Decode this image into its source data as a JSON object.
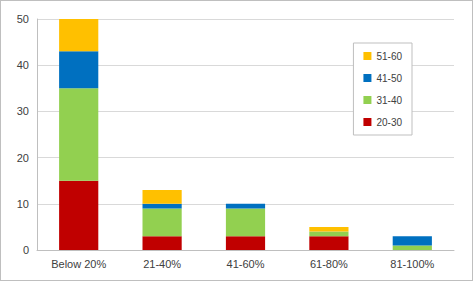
{
  "chart_data": {
    "type": "bar",
    "stacked": true,
    "grid": true,
    "legend": "right",
    "categories": [
      "Below 20%",
      "21-40%",
      "41-60%",
      "61-80%",
      "81-100%"
    ],
    "series": [
      {
        "name": "20-30",
        "color": "#c00000",
        "values": [
          15,
          3,
          3,
          3,
          0
        ]
      },
      {
        "name": "31-40",
        "color": "#92d050",
        "values": [
          20,
          6,
          6,
          1,
          1
        ]
      },
      {
        "name": "41-50",
        "color": "#0070c0",
        "values": [
          8,
          1,
          1,
          0,
          2
        ]
      },
      {
        "name": "51-60",
        "color": "#ffc000",
        "values": [
          7,
          3,
          0,
          1,
          0
        ]
      }
    ],
    "ylim": [
      0,
      50
    ],
    "yticks": [
      0,
      10,
      20,
      30,
      40,
      50
    ]
  }
}
